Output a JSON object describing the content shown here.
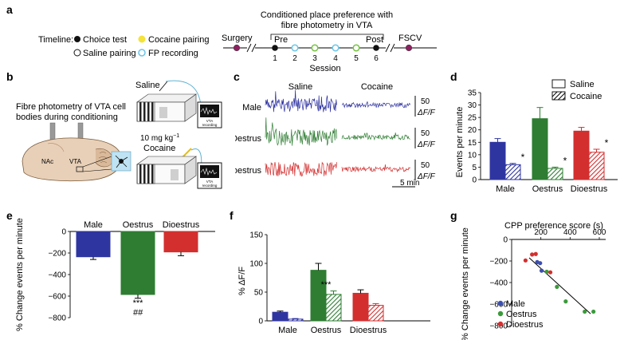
{
  "panel_letters": [
    "a",
    "b",
    "c",
    "d",
    "e",
    "f",
    "g"
  ],
  "panel_a": {
    "timeline_label": "Timeline:",
    "legend": [
      {
        "label": "Choice test",
        "color": "#111111",
        "hollow": false,
        "icon": "black-dot-icon"
      },
      {
        "label": "Cocaine pairing",
        "color": "#f5e23a",
        "hollow": false,
        "icon": "yellow-dot-icon"
      },
      {
        "label": "Saline pairing",
        "color": "#ffffff",
        "hollow": true,
        "icon": "hollow-dot-icon"
      },
      {
        "label": "FP recording",
        "color": "#6cc6e8",
        "hollow": true,
        "icon": "cyan-ring-icon"
      }
    ],
    "title_line1": "Conditioned place preference with",
    "title_line2": "fibre photometry in VTA",
    "surgery": "Surgery",
    "pre": "Pre",
    "post": "Post",
    "fscv": "FSCV",
    "session_label": "Session",
    "sessions": [
      "1",
      "2",
      "3",
      "4",
      "5",
      "6"
    ]
  },
  "panel_b": {
    "title_line1": "Fibre photometry of VTA cell",
    "title_line2": "bodies during conditioning",
    "saline": "Saline",
    "dose": "10 mg kg",
    "dose_sup": "−1",
    "cocaine": "Cocaine",
    "nac": "NAc",
    "vta": "VTA",
    "recording_line1": "VTA",
    "recording_line2": "recording"
  },
  "panel_c": {
    "col_saline": "Saline",
    "col_cocaine": "Cocaine",
    "rows": [
      {
        "label": "Male",
        "color": "#2b2f9e"
      },
      {
        "label": "Oestrus",
        "color": "#2e7d32"
      },
      {
        "label": "Dioestrus",
        "color": "#d32f2f"
      }
    ],
    "scale_value": "50",
    "scale_unit": "ΔF/F",
    "time_scale": "5 min"
  },
  "panel_d": {
    "legend_saline": "Saline",
    "legend_cocaine": "Cocaine",
    "ylabel": "Events per minute",
    "star": "*"
  },
  "panel_e": {
    "ylabel": "% Change events per minute",
    "stars": "***",
    "hashes": "##"
  },
  "panel_f": {
    "ylabel": "% ΔF/F",
    "stars": "***"
  },
  "panel_g": {
    "xlabel": "CPP preference score (s)",
    "ylabel": "% Change events per minute",
    "legend": [
      {
        "label": "Male",
        "color": "#3b4fb0"
      },
      {
        "label": "Oestrus",
        "color": "#3a9a3a"
      },
      {
        "label": "Dioestrus",
        "color": "#d32f2f"
      }
    ]
  },
  "chart_data": [
    {
      "id": "d",
      "type": "bar",
      "categories": [
        "Male",
        "Oestrus",
        "Dioestrus"
      ],
      "series": [
        {
          "name": "Saline",
          "values": [
            15,
            24.5,
            19.5
          ],
          "errors": [
            1.5,
            4.5,
            1.5
          ]
        },
        {
          "name": "Cocaine",
          "values": [
            6,
            4.5,
            11
          ],
          "errors": [
            0.5,
            0.5,
            1.2
          ]
        }
      ],
      "colors": [
        "#2f35a0",
        "#2e7d32",
        "#d32f2f"
      ],
      "ylabel": "Events per minute",
      "ylim": [
        0,
        35
      ],
      "yticks": [
        0,
        5,
        10,
        15,
        20,
        25,
        30,
        35
      ],
      "significance": [
        "*",
        "*",
        "*"
      ]
    },
    {
      "id": "e",
      "type": "bar",
      "categories": [
        "Male",
        "Oestrus",
        "Dioestrus"
      ],
      "values": [
        -235,
        -585,
        -190
      ],
      "errors": [
        25,
        35,
        35
      ],
      "colors": [
        "#2f35a0",
        "#2e7d32",
        "#d32f2f"
      ],
      "ylabel": "% Change events per minute",
      "ylim": [
        -800,
        0
      ],
      "yticks": [
        0,
        -200,
        -400,
        -600,
        -800
      ]
    },
    {
      "id": "f",
      "type": "bar",
      "categories": [
        "Male",
        "Oestrus",
        "Dioestrus"
      ],
      "series": [
        {
          "name": "Saline",
          "values": [
            15,
            88,
            48
          ],
          "errors": [
            2,
            12,
            6
          ]
        },
        {
          "name": "Cocaine",
          "values": [
            3,
            46,
            27
          ],
          "errors": [
            1,
            6,
            3
          ]
        }
      ],
      "colors": [
        "#2f35a0",
        "#2e7d32",
        "#d32f2f"
      ],
      "ylabel": "% ΔF/F",
      "ylim": [
        0,
        150
      ],
      "yticks": [
        0,
        50,
        100,
        150
      ]
    },
    {
      "id": "g",
      "type": "scatter",
      "xlabel": "CPP preference score (s)",
      "ylabel": "% Change events per minute",
      "xlim": [
        0,
        600
      ],
      "ylim": [
        -800,
        0
      ],
      "xticks": [
        200,
        400,
        600
      ],
      "yticks": [
        0,
        -200,
        -400,
        -600,
        -800
      ],
      "series": [
        {
          "name": "Male",
          "color": "#3b4fb0",
          "points": [
            [
              175,
              -210
            ],
            [
              195,
              -220
            ],
            [
              205,
              -290
            ]
          ]
        },
        {
          "name": "Oestrus",
          "color": "#3a9a3a",
          "points": [
            [
              240,
              -300
            ],
            [
              310,
              -440
            ],
            [
              370,
              -575
            ],
            [
              500,
              -670
            ],
            [
              560,
              -670
            ]
          ]
        },
        {
          "name": "Dioestrus",
          "color": "#d32f2f",
          "points": [
            [
              95,
              -195
            ],
            [
              140,
              -140
            ],
            [
              165,
              -135
            ],
            [
              265,
              -305
            ]
          ]
        }
      ],
      "fit_line": [
        [
          120,
          -170
        ],
        [
          540,
          -690
        ]
      ]
    }
  ]
}
